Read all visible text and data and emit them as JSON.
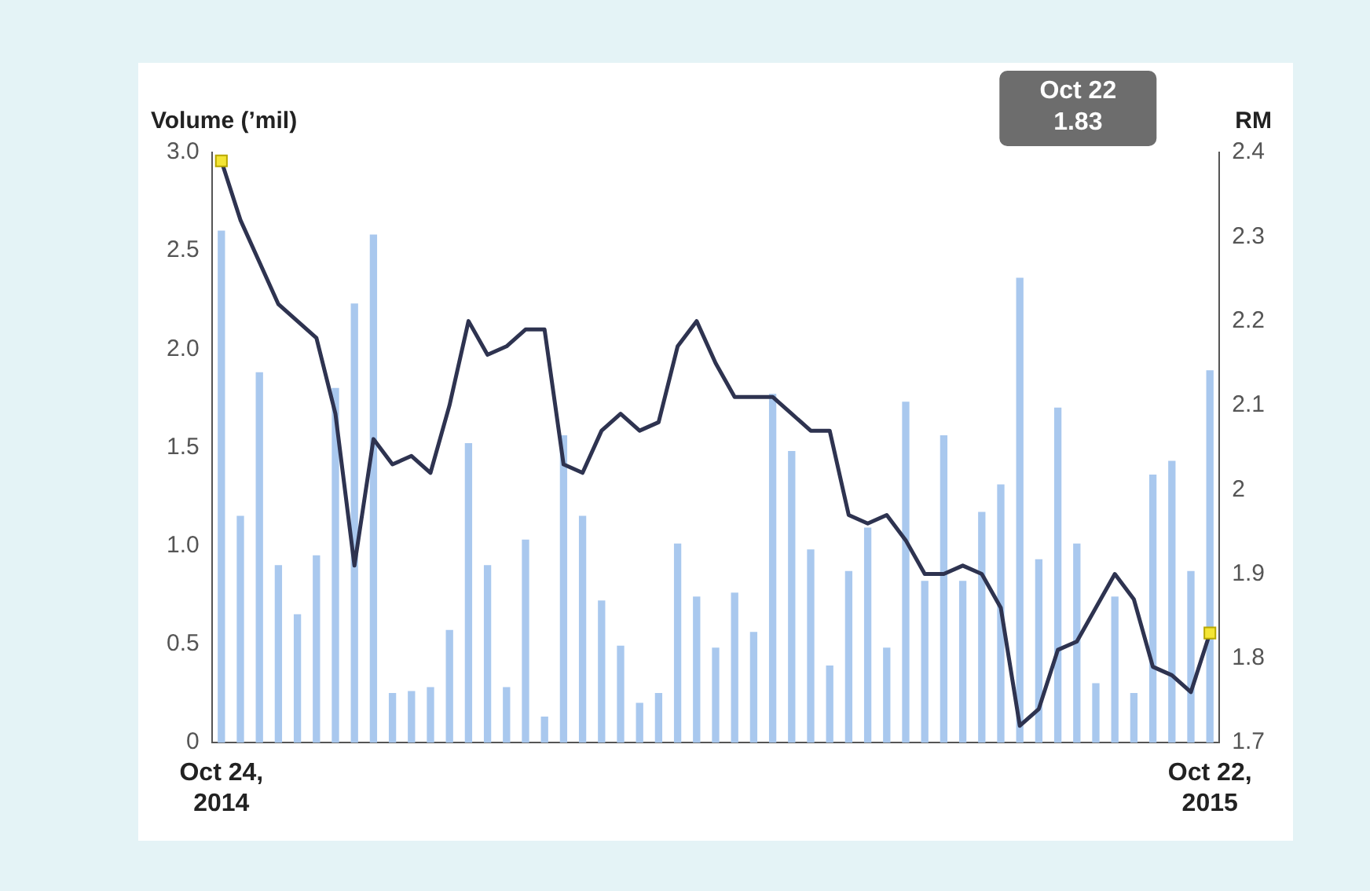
{
  "chart_data": {
    "type": "bar",
    "ylabel": "Volume (’mil)",
    "y2label": "RM",
    "categories": [
      "Oct 24, 2014",
      null,
      null,
      null,
      null,
      null,
      null,
      null,
      null,
      null,
      null,
      null,
      null,
      null,
      null,
      null,
      null,
      null,
      null,
      null,
      null,
      null,
      null,
      null,
      null,
      null,
      null,
      null,
      null,
      null,
      null,
      null,
      null,
      null,
      null,
      null,
      null,
      null,
      null,
      null,
      null,
      null,
      null,
      null,
      null,
      null,
      null,
      null,
      null,
      null,
      null,
      null,
      "Oct 22, 2015"
    ],
    "series": [
      {
        "color": "#a9c8ee",
        "values": [
          2.6,
          1.15,
          1.88,
          0.9,
          0.65,
          0.95,
          1.8,
          2.23,
          2.58,
          0.25,
          0.26,
          0.28,
          0.57,
          1.52,
          0.9,
          0.28,
          1.03,
          0.13,
          1.56,
          1.15,
          0.72,
          0.49,
          0.2,
          0.25,
          1.01,
          0.74,
          0.48,
          0.76,
          0.56,
          1.77,
          1.48,
          0.98,
          0.39,
          0.87,
          1.09,
          0.48,
          1.73,
          0.82,
          1.56,
          0.82,
          1.17,
          1.31,
          2.36,
          0.93,
          1.7,
          1.01,
          0.3,
          0.74,
          0.25,
          1.36,
          1.43,
          0.87,
          1.89
        ]
      },
      {
        "type": "line",
        "axis": "y2",
        "color": "#2e3350",
        "marker": "none",
        "values": [
          2.39,
          2.32,
          2.27,
          2.22,
          2.2,
          2.18,
          2.09,
          1.91,
          2.06,
          2.03,
          2.04,
          2.02,
          2.1,
          2.2,
          2.16,
          2.17,
          2.19,
          2.19,
          2.03,
          2.02,
          2.07,
          2.09,
          2.07,
          2.08,
          2.17,
          2.2,
          2.15,
          2.11,
          2.11,
          2.11,
          2.09,
          2.07,
          2.07,
          1.97,
          1.96,
          1.97,
          1.94,
          1.9,
          1.9,
          1.91,
          1.9,
          1.86,
          1.72,
          1.74,
          1.81,
          1.82,
          1.86,
          1.9,
          1.87,
          1.79,
          1.78,
          1.76,
          1.83
        ]
      },
      {
        "type": "scatter",
        "axis": "y2",
        "color": "#f4e534",
        "marker": "square",
        "values": [
          2.39,
          null,
          null,
          null,
          null,
          null,
          null,
          null,
          null,
          null,
          null,
          null,
          null,
          null,
          null,
          null,
          null,
          null,
          null,
          null,
          null,
          null,
          null,
          null,
          null,
          null,
          null,
          null,
          null,
          null,
          null,
          null,
          null,
          null,
          null,
          null,
          null,
          null,
          null,
          null,
          null,
          null,
          null,
          null,
          null,
          null,
          null,
          null,
          null,
          null,
          null,
          null,
          1.83
        ]
      }
    ],
    "ylim": [
      0,
      3
    ],
    "yticks": [
      0,
      0.5,
      {
        "value": 1,
        "label": "1.0"
      },
      1.5,
      {
        "value": 2,
        "label": "2.0"
      },
      2.5,
      {
        "value": 3,
        "label": "3.0"
      }
    ],
    "y2lim": [
      1.7,
      2.4
    ],
    "y2ticks": [
      1.7,
      1.8,
      1.9,
      2,
      2.1,
      2.2,
      2.3,
      2.4
    ],
    "annotations": [
      "Oct 22\n1.83"
    ],
    "grid": false,
    "legend": false,
    "line_style": "solid"
  }
}
